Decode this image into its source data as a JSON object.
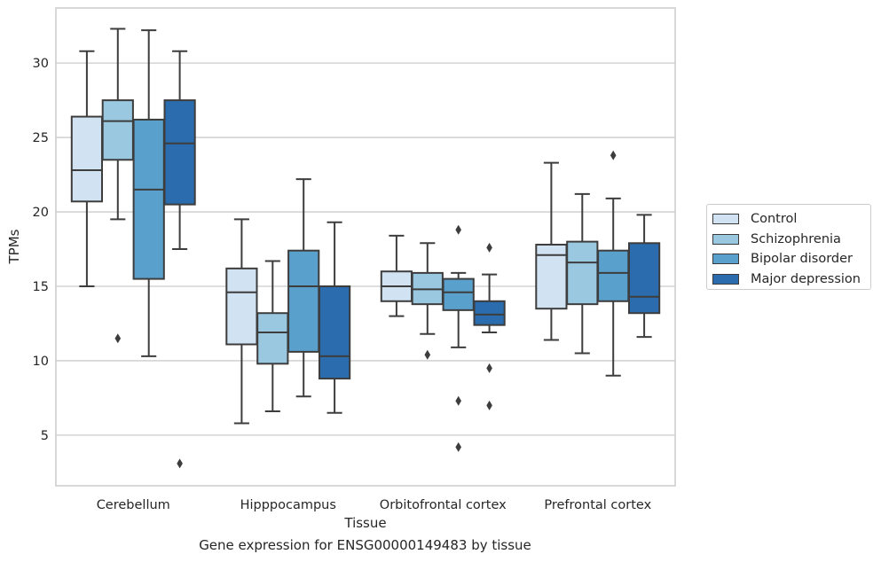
{
  "caption": "Gene expression for ENSG00000149483 by tissue",
  "chart_data": {
    "type": "box",
    "title": "",
    "xlabel": "Tissue",
    "ylabel": "TPMs",
    "ylim": [
      1.6,
      33.7
    ],
    "yticks": [
      5,
      10,
      15,
      20,
      25,
      30
    ],
    "grid": "horizontal",
    "legend_position": "right",
    "categories": [
      "Cerebellum",
      "Hipppocampus",
      "Orbitofrontal cortex",
      "Prefrontal cortex"
    ],
    "series": [
      {
        "name": "Control",
        "color": "#d1e3f3",
        "boxes": [
          {
            "whisker_low": 15.0,
            "q1": 20.7,
            "median": 22.8,
            "q3": 26.4,
            "whisker_high": 30.8,
            "outliers": []
          },
          {
            "whisker_low": 5.8,
            "q1": 11.1,
            "median": 14.6,
            "q3": 16.2,
            "whisker_high": 19.5,
            "outliers": []
          },
          {
            "whisker_low": 13.0,
            "q1": 14.0,
            "median": 15.0,
            "q3": 16.0,
            "whisker_high": 18.4,
            "outliers": []
          },
          {
            "whisker_low": 11.4,
            "q1": 13.5,
            "median": 17.1,
            "q3": 17.8,
            "whisker_high": 23.3,
            "outliers": []
          }
        ]
      },
      {
        "name": "Schizophrenia",
        "color": "#9ac8e0",
        "boxes": [
          {
            "whisker_low": 19.5,
            "q1": 23.5,
            "median": 26.1,
            "q3": 27.5,
            "whisker_high": 32.3,
            "outliers": [
              11.5
            ]
          },
          {
            "whisker_low": 6.6,
            "q1": 9.8,
            "median": 11.9,
            "q3": 13.2,
            "whisker_high": 16.7,
            "outliers": []
          },
          {
            "whisker_low": 11.8,
            "q1": 13.8,
            "median": 14.8,
            "q3": 15.9,
            "whisker_high": 17.9,
            "outliers": [
              10.4
            ]
          },
          {
            "whisker_low": 10.5,
            "q1": 13.8,
            "median": 16.6,
            "q3": 18.0,
            "whisker_high": 21.2,
            "outliers": []
          }
        ]
      },
      {
        "name": "Bipolar disorder",
        "color": "#5aa0cd",
        "boxes": [
          {
            "whisker_low": 10.3,
            "q1": 15.5,
            "median": 21.5,
            "q3": 26.2,
            "whisker_high": 32.2,
            "outliers": []
          },
          {
            "whisker_low": 7.6,
            "q1": 10.6,
            "median": 15.0,
            "q3": 17.4,
            "whisker_high": 22.2,
            "outliers": []
          },
          {
            "whisker_low": 10.9,
            "q1": 13.4,
            "median": 14.6,
            "q3": 15.5,
            "whisker_high": 15.9,
            "outliers": [
              18.8,
              7.3,
              4.2
            ]
          },
          {
            "whisker_low": 9.0,
            "q1": 14.0,
            "median": 15.9,
            "q3": 17.4,
            "whisker_high": 20.9,
            "outliers": [
              23.8
            ]
          }
        ]
      },
      {
        "name": "Major depression",
        "color": "#2a6cad",
        "boxes": [
          {
            "whisker_low": 17.5,
            "q1": 20.5,
            "median": 24.6,
            "q3": 27.5,
            "whisker_high": 30.8,
            "outliers": [
              3.1
            ]
          },
          {
            "whisker_low": 6.5,
            "q1": 8.8,
            "median": 10.3,
            "q3": 15.0,
            "whisker_high": 19.3,
            "outliers": []
          },
          {
            "whisker_low": 11.9,
            "q1": 12.4,
            "median": 13.1,
            "q3": 14.0,
            "whisker_high": 15.8,
            "outliers": [
              17.6,
              9.5,
              7.0
            ]
          },
          {
            "whisker_low": 11.6,
            "q1": 13.2,
            "median": 14.3,
            "q3": 17.9,
            "whisker_high": 19.8,
            "outliers": []
          }
        ]
      }
    ]
  }
}
